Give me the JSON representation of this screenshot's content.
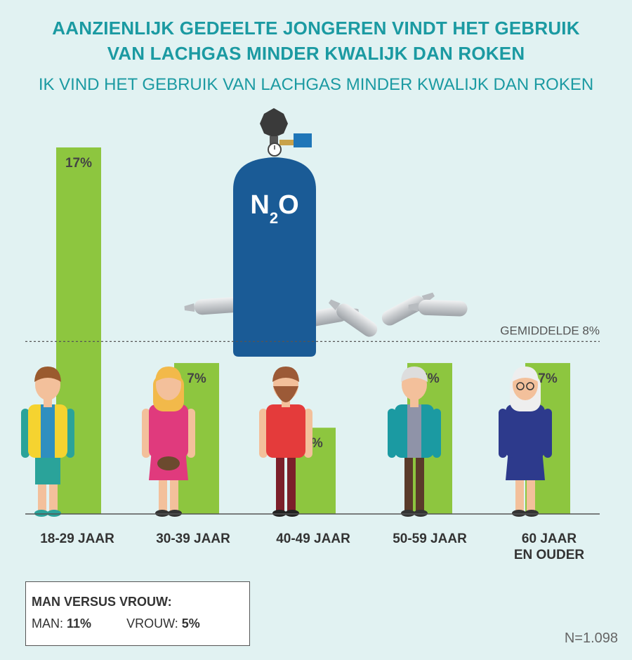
{
  "header": {
    "title_line1": "AANZIENLIJK GEDEELTE JONGEREN VINDT HET GEBRUIK",
    "title_line2": "VAN LACHGAS MINDER KWALIJK DAN ROKEN",
    "subtitle": "IK VIND HET GEBRUIK VAN LACHGAS MINDER KWALIJK DAN ROKEN"
  },
  "chart_data": {
    "type": "bar",
    "categories": [
      "18-29 JAAR",
      "30-39 JAAR",
      "40-49 JAAR",
      "50-59 JAAR",
      "60 JAAR EN OUDER"
    ],
    "category_lines": [
      [
        "18-29 JAAR"
      ],
      [
        "30-39 JAAR"
      ],
      [
        "40-49 JAAR"
      ],
      [
        "50-59 JAAR"
      ],
      [
        "60 JAAR",
        "EN OUDER"
      ]
    ],
    "values": [
      17,
      7,
      4,
      7,
      7
    ],
    "value_labels": [
      "17%",
      "7%",
      "4%",
      "7%",
      "7%"
    ],
    "average": 8,
    "average_label": "GEMIDDELDE 8%",
    "ylim": [
      0,
      17
    ],
    "bar_color": "#8dc63f",
    "grid": false,
    "tank_label_main": "N",
    "tank_label_sub": "2",
    "tank_label_end": "O"
  },
  "summary": {
    "title": "MAN VERSUS VROUW:",
    "man_label": "MAN: ",
    "man_value": "11%",
    "vrouw_label": "VROUW: ",
    "vrouw_value": "5%"
  },
  "footer": {
    "sample_size": "N=1.098"
  },
  "colors": {
    "background": "#e1f2f2",
    "accent": "#1b9aa2",
    "bar": "#8dc63f",
    "tank": "#1a5b96"
  }
}
